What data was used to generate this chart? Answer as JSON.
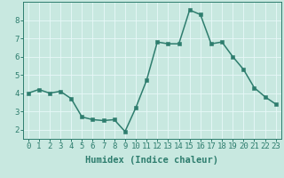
{
  "x": [
    0,
    1,
    2,
    3,
    4,
    5,
    6,
    7,
    8,
    9,
    10,
    11,
    12,
    13,
    14,
    15,
    16,
    17,
    18,
    19,
    20,
    21,
    22,
    23
  ],
  "y": [
    4.0,
    4.2,
    4.0,
    4.1,
    3.7,
    2.7,
    2.55,
    2.5,
    2.55,
    1.9,
    3.2,
    4.7,
    6.8,
    6.7,
    6.7,
    8.55,
    8.3,
    6.7,
    6.8,
    6.0,
    5.3,
    4.3,
    3.8,
    3.4
  ],
  "bg_color": "#c8e8e0",
  "grid_color": "#e8f8f8",
  "line_color": "#2e7d6e",
  "marker_color": "#2e7d6e",
  "xlabel": "Humidex (Indice chaleur)",
  "xlim": [
    -0.5,
    23.5
  ],
  "ylim": [
    1.5,
    9.0
  ],
  "yticks": [
    2,
    3,
    4,
    5,
    6,
    7,
    8
  ],
  "xticks": [
    0,
    1,
    2,
    3,
    4,
    5,
    6,
    7,
    8,
    9,
    10,
    11,
    12,
    13,
    14,
    15,
    16,
    17,
    18,
    19,
    20,
    21,
    22,
    23
  ],
  "tick_label_fontsize": 6.5,
  "xlabel_fontsize": 7.5,
  "line_width": 1.1,
  "marker_size": 2.5
}
